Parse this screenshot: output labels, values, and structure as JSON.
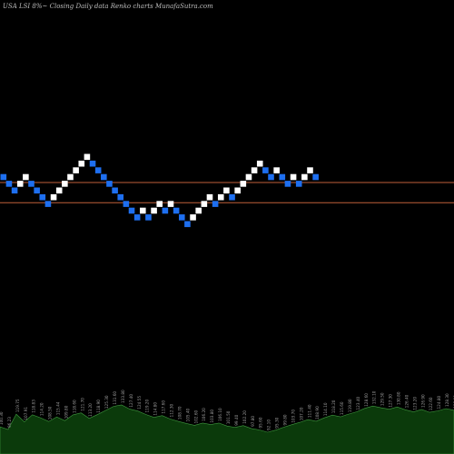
{
  "title": "USA LSI 8%~  Closing Daily data  Renko  charts MunafaSutra.com",
  "colors": {
    "background": "#000000",
    "up_brick": "#ffffff",
    "down_brick": "#1e6ff0",
    "reference_line": "#c0603a",
    "volume_fill": "#0b3a0b",
    "volume_outline": "#3f9a3f"
  },
  "chart_data": {
    "type": "renko",
    "bricks": [
      {
        "value": 5,
        "dir": "down"
      },
      {
        "value": 4,
        "dir": "down"
      },
      {
        "value": 3,
        "dir": "down"
      },
      {
        "value": 4,
        "dir": "up"
      },
      {
        "value": 5,
        "dir": "up"
      },
      {
        "value": 4,
        "dir": "down"
      },
      {
        "value": 3,
        "dir": "down"
      },
      {
        "value": 2,
        "dir": "down"
      },
      {
        "value": 1,
        "dir": "down"
      },
      {
        "value": 2,
        "dir": "up"
      },
      {
        "value": 3,
        "dir": "up"
      },
      {
        "value": 4,
        "dir": "up"
      },
      {
        "value": 5,
        "dir": "up"
      },
      {
        "value": 6,
        "dir": "up"
      },
      {
        "value": 7,
        "dir": "up"
      },
      {
        "value": 8,
        "dir": "up"
      },
      {
        "value": 7,
        "dir": "down"
      },
      {
        "value": 6,
        "dir": "down"
      },
      {
        "value": 5,
        "dir": "down"
      },
      {
        "value": 4,
        "dir": "down"
      },
      {
        "value": 3,
        "dir": "down"
      },
      {
        "value": 2,
        "dir": "down"
      },
      {
        "value": 1,
        "dir": "down"
      },
      {
        "value": 0,
        "dir": "down"
      },
      {
        "value": -1,
        "dir": "down"
      },
      {
        "value": 0,
        "dir": "up"
      },
      {
        "value": -1,
        "dir": "down"
      },
      {
        "value": 0,
        "dir": "up"
      },
      {
        "value": 1,
        "dir": "up"
      },
      {
        "value": 0,
        "dir": "down"
      },
      {
        "value": 1,
        "dir": "up"
      },
      {
        "value": 0,
        "dir": "down"
      },
      {
        "value": -1,
        "dir": "down"
      },
      {
        "value": -2,
        "dir": "down"
      },
      {
        "value": -1,
        "dir": "up"
      },
      {
        "value": 0,
        "dir": "up"
      },
      {
        "value": 1,
        "dir": "up"
      },
      {
        "value": 2,
        "dir": "up"
      },
      {
        "value": 1,
        "dir": "down"
      },
      {
        "value": 2,
        "dir": "up"
      },
      {
        "value": 3,
        "dir": "up"
      },
      {
        "value": 2,
        "dir": "down"
      },
      {
        "value": 3,
        "dir": "up"
      },
      {
        "value": 4,
        "dir": "up"
      },
      {
        "value": 5,
        "dir": "up"
      },
      {
        "value": 6,
        "dir": "up"
      },
      {
        "value": 7,
        "dir": "up"
      },
      {
        "value": 6,
        "dir": "down"
      },
      {
        "value": 5,
        "dir": "down"
      },
      {
        "value": 6,
        "dir": "up"
      },
      {
        "value": 5,
        "dir": "down"
      },
      {
        "value": 4,
        "dir": "down"
      },
      {
        "value": 5,
        "dir": "up"
      },
      {
        "value": 4,
        "dir": "down"
      },
      {
        "value": 5,
        "dir": "up"
      },
      {
        "value": 6,
        "dir": "up"
      },
      {
        "value": 5,
        "dir": "down"
      }
    ],
    "reference_lines": [
      5,
      2
    ],
    "volume_labels": [
      "100.30",
      "96.23",
      "119.75",
      "107.91",
      "118.83",
      "114.20",
      "108.50",
      "115.44",
      "109.80",
      "118.60",
      "121.70",
      "113.20",
      "118.90",
      "125.30",
      "131.60",
      "133.80",
      "127.40",
      "124.55",
      "119.20",
      "114.80",
      "117.60",
      "112.30",
      "108.70",
      "105.40",
      "102.60",
      "106.20",
      "103.80",
      "106.10",
      "101.50",
      "99.40",
      "102.20",
      "97.80",
      "95.60",
      "92.10",
      "95.30",
      "99.80",
      "103.70",
      "107.20",
      "111.40",
      "108.90",
      "114.10",
      "118.20",
      "115.60",
      "119.80",
      "123.40",
      "128.60",
      "132.10",
      "129.50",
      "127.30",
      "130.80",
      "126.40",
      "123.20",
      "126.90",
      "122.60",
      "124.80",
      "128.30",
      "125.80"
    ]
  }
}
